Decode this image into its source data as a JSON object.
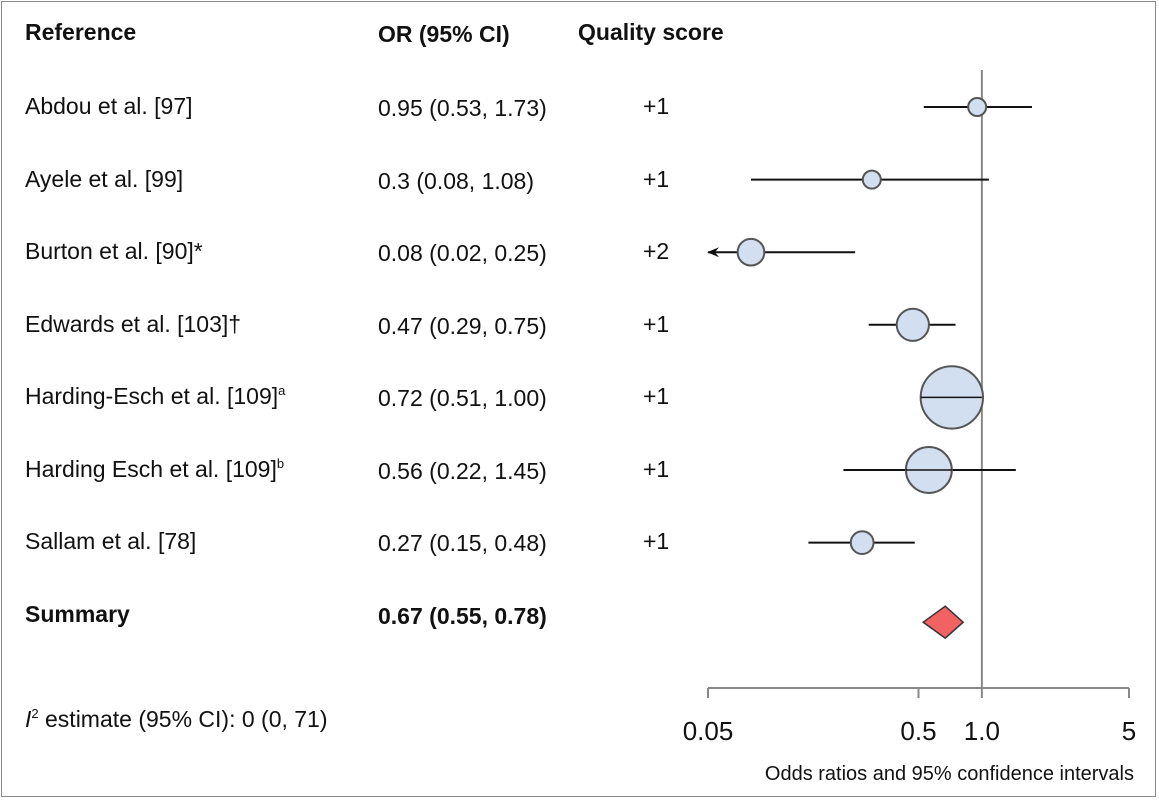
{
  "headers": {
    "reference": "Reference",
    "or": "OR (95% CI)",
    "quality": "Quality score"
  },
  "rows": [
    {
      "reference": "Abdou et al. [97]",
      "sup": "",
      "or_text": "0.95 (0.53, 1.73)",
      "quality": "+1"
    },
    {
      "reference": "Ayele et al. [99]",
      "sup": "",
      "or_text": "0.3 (0.08, 1.08)",
      "quality": "+1"
    },
    {
      "reference": "Burton et al. [90]*",
      "sup": "",
      "or_text": "0.08 (0.02, 0.25)",
      "quality": "+2"
    },
    {
      "reference": "Edwards et al. [103]†",
      "sup": "",
      "or_text": "0.47 (0.29, 0.75)",
      "quality": "+1"
    },
    {
      "reference": "Harding-Esch et al. [109]",
      "sup": "a",
      "or_text": "0.72 (0.51, 1.00)",
      "quality": "+1"
    },
    {
      "reference": "Harding Esch et al. [109]",
      "sup": "b",
      "or_text": "0.56 (0.22, 1.45)",
      "quality": "+1"
    },
    {
      "reference": "Sallam et al. [78]",
      "sup": "",
      "or_text": "0.27 (0.15, 0.48)",
      "quality": "+1"
    }
  ],
  "summary": {
    "label": "Summary",
    "or_text": "0.67 (0.55, 0.78)"
  },
  "heterogeneity": {
    "i": "I",
    "sup": "2",
    "text": " estimate (95% CI): 0 (0, 71)"
  },
  "chart_data": {
    "type": "forest",
    "scale": "log",
    "xlim": [
      0.05,
      5
    ],
    "reference_line": 1.0,
    "xticks": [
      0.05,
      0.5,
      1.0,
      5
    ],
    "xtick_labels": [
      "0.05",
      "0.5",
      "1.0",
      "5"
    ],
    "xlabel": "Odds ratios and 95% confidence intervals",
    "studies": [
      {
        "or": 0.95,
        "lo": 0.53,
        "hi": 1.73,
        "weight": 1
      },
      {
        "or": 0.3,
        "lo": 0.08,
        "hi": 1.08,
        "weight": 1
      },
      {
        "or": 0.08,
        "lo": 0.02,
        "hi": 0.25,
        "weight": 2.2,
        "lower_truncated": true
      },
      {
        "or": 0.47,
        "lo": 0.29,
        "hi": 0.75,
        "weight": 3.2
      },
      {
        "or": 0.72,
        "lo": 0.51,
        "hi": 1.0,
        "weight": 12
      },
      {
        "or": 0.56,
        "lo": 0.22,
        "hi": 1.45,
        "weight": 6.5
      },
      {
        "or": 0.27,
        "lo": 0.15,
        "hi": 0.48,
        "weight": 1.6
      }
    ],
    "summary": {
      "or": 0.67,
      "lo": 0.55,
      "hi": 0.78
    },
    "colors": {
      "marker_fill": "#d2dff1",
      "marker_stroke": "#555555",
      "summary_fill": "#f26262",
      "line": "#111111",
      "axis": "#888888"
    }
  }
}
